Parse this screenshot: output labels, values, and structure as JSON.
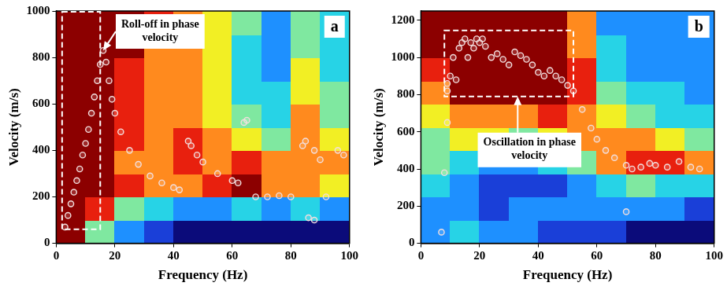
{
  "chart_data": [
    {
      "type": "scatter",
      "panel_label": "a",
      "x_label": "Frequency (Hz)",
      "y_label": "Velocity (m/s)",
      "xlim": [
        0,
        100
      ],
      "xticks": [
        0,
        20,
        40,
        60,
        80,
        100
      ],
      "ylim": [
        0,
        1000
      ],
      "yticks": [
        0,
        200,
        400,
        600,
        800,
        1000
      ],
      "grid": false,
      "marker": "circle",
      "color": "#f2dede",
      "x": [
        3,
        4,
        5,
        6,
        7,
        8,
        9,
        10,
        11,
        12,
        13,
        14,
        15,
        16,
        17,
        18,
        19,
        20,
        22,
        25,
        28,
        32,
        36,
        40,
        42,
        45,
        46,
        48,
        50,
        55,
        60,
        62,
        64,
        65,
        68,
        72,
        76,
        80,
        84,
        85,
        88,
        90,
        92,
        96,
        98,
        86,
        88
      ],
      "values": [
        70,
        120,
        170,
        220,
        270,
        320,
        380,
        430,
        490,
        560,
        630,
        700,
        770,
        830,
        780,
        700,
        620,
        560,
        480,
        400,
        340,
        290,
        260,
        240,
        230,
        440,
        420,
        380,
        350,
        300,
        270,
        260,
        520,
        530,
        200,
        200,
        205,
        200,
        420,
        440,
        400,
        360,
        200,
        400,
        380,
        110,
        100
      ],
      "heatmap": {
        "x_edges": [
          0,
          10,
          20,
          30,
          40,
          50,
          60,
          70,
          80,
          90,
          100
        ],
        "y_edges": [
          0,
          100,
          200,
          300,
          400,
          500,
          600,
          700,
          800,
          900,
          1000
        ],
        "cells": [
          [
            1,
            0.5,
            0.3,
            0.2,
            0.1,
            0.1,
            0.1,
            0.1,
            0.05,
            0.05
          ],
          [
            1,
            0.9,
            0.5,
            0.4,
            0.3,
            0.3,
            0.4,
            0.3,
            0.4,
            0.3
          ],
          [
            1,
            1,
            0.9,
            0.8,
            0.8,
            0.9,
            1,
            0.8,
            0.7,
            0.6
          ],
          [
            1,
            1,
            0.8,
            0.8,
            0.9,
            0.8,
            0.9,
            0.7,
            0.8,
            0.7
          ],
          [
            1,
            1,
            0.9,
            0.7,
            0.9,
            0.7,
            0.6,
            0.5,
            0.8,
            0.6
          ],
          [
            1,
            1,
            0.9,
            0.7,
            0.8,
            0.6,
            0.5,
            0.4,
            0.7,
            0.5
          ],
          [
            1,
            1,
            0.9,
            0.8,
            0.7,
            0.6,
            0.4,
            0.4,
            0.6,
            0.5
          ],
          [
            1,
            1,
            0.9,
            0.8,
            0.7,
            0.6,
            0.4,
            0.3,
            0.6,
            0.4
          ],
          [
            1,
            1,
            1,
            0.8,
            0.7,
            0.6,
            0.4,
            0.3,
            0.5,
            0.4
          ],
          [
            1,
            1,
            1,
            0.9,
            0.7,
            0.6,
            0.5,
            0.3,
            0.5,
            0.4
          ]
        ]
      },
      "annotations": [
        {
          "text": "Roll-off in phase velocity",
          "box": {
            "x": [
              2,
              15
            ],
            "y": [
              60,
              1000
            ]
          },
          "arrow_to": {
            "x": 16,
            "y": 830
          }
        }
      ]
    },
    {
      "type": "scatter",
      "panel_label": "b",
      "x_label": "Frequency (Hz)",
      "y_label": "Velocity (m/s)",
      "xlim": [
        0,
        100
      ],
      "xticks": [
        0,
        20,
        40,
        60,
        80,
        100
      ],
      "ylim": [
        0,
        1250
      ],
      "yticks": [
        0,
        200,
        400,
        600,
        800,
        1000,
        1200
      ],
      "grid": false,
      "marker": "circle",
      "color": "#f2dede",
      "x": [
        7,
        8,
        9,
        9,
        9,
        10,
        11,
        12,
        13,
        14,
        15,
        16,
        17,
        18,
        19,
        20,
        21,
        22,
        24,
        26,
        28,
        30,
        32,
        34,
        36,
        38,
        40,
        42,
        44,
        46,
        48,
        50,
        52,
        55,
        58,
        60,
        63,
        66,
        70,
        72,
        75,
        78,
        80,
        84,
        88,
        92,
        95,
        70
      ],
      "values": [
        60,
        380,
        650,
        820,
        860,
        900,
        1000,
        880,
        1050,
        1080,
        1100,
        1000,
        1080,
        1050,
        1100,
        1080,
        1100,
        1060,
        1000,
        1020,
        990,
        960,
        1030,
        1010,
        990,
        960,
        920,
        900,
        930,
        900,
        880,
        850,
        820,
        720,
        620,
        560,
        500,
        460,
        420,
        400,
        410,
        430,
        420,
        410,
        440,
        410,
        400,
        170
      ],
      "heatmap": {
        "x_edges": [
          0,
          10,
          20,
          30,
          40,
          50,
          60,
          70,
          80,
          90,
          100
        ],
        "y_edges": [
          0,
          125,
          250,
          375,
          500,
          625,
          750,
          875,
          1000,
          1125,
          1250
        ],
        "cells": [
          [
            0.3,
            0.4,
            0.3,
            0.3,
            0.2,
            0.2,
            0.2,
            0.1,
            0.1,
            0.1
          ],
          [
            0.3,
            0.3,
            0.2,
            0.3,
            0.3,
            0.3,
            0.3,
            0.3,
            0.3,
            0.2
          ],
          [
            0.4,
            0.3,
            0.2,
            0.2,
            0.2,
            0.3,
            0.4,
            0.5,
            0.4,
            0.4
          ],
          [
            0.5,
            0.4,
            0.3,
            0.3,
            0.4,
            0.5,
            0.8,
            0.9,
            0.9,
            0.8
          ],
          [
            0.5,
            0.6,
            0.6,
            0.5,
            0.6,
            0.7,
            0.8,
            0.7,
            0.6,
            0.5
          ],
          [
            0.6,
            0.8,
            0.8,
            0.8,
            0.9,
            0.8,
            0.6,
            0.5,
            0.4,
            0.4
          ],
          [
            0.8,
            1,
            1,
            1,
            1,
            0.9,
            0.5,
            0.4,
            0.4,
            0.3
          ],
          [
            0.9,
            1,
            1,
            1,
            1,
            0.9,
            0.4,
            0.3,
            0.3,
            0.3
          ],
          [
            1,
            1,
            1,
            1,
            1,
            0.8,
            0.4,
            0.3,
            0.3,
            0.3
          ],
          [
            1,
            1,
            1,
            1,
            1,
            0.8,
            0.3,
            0.3,
            0.3,
            0.3
          ]
        ]
      },
      "annotations": [
        {
          "text": "Oscillation in phase velocity",
          "box": {
            "x": [
              8,
              52
            ],
            "y": [
              790,
              1150
            ]
          },
          "arrow_to": {
            "x": 33,
            "y": 790
          }
        }
      ]
    }
  ]
}
